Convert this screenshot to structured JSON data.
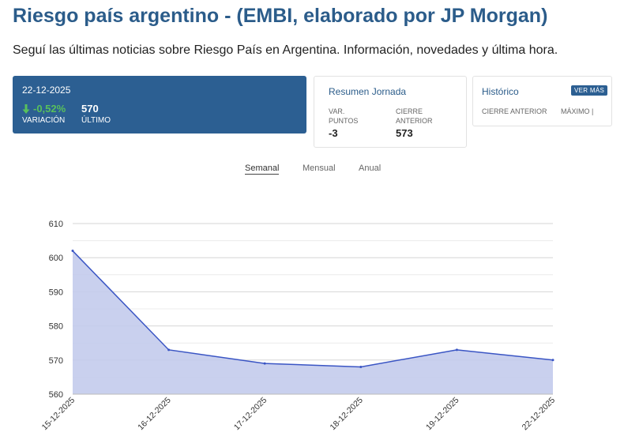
{
  "page": {
    "title": "Riesgo país argentino - (EMBI, elaborado por JP Morgan)",
    "subtitle": "Seguí las últimas noticias sobre Riesgo País en Argentina. Información, novedades y última hora."
  },
  "summary_card": {
    "date": "22-12-2025",
    "variation_value": "-0,52%",
    "variation_label": "VARIACIÓN",
    "last_value": "570",
    "last_label": "ÚLTIMO",
    "variation_icon": "arrow-down-icon"
  },
  "resumen": {
    "heading": "Resumen Jornada",
    "var_label": "VAR. PUNTOS",
    "var_value": "-3",
    "prev_label": "CIERRE ANTERIOR",
    "prev_value": "573"
  },
  "historico": {
    "heading": "Histórico",
    "button": "VER MÁS",
    "prev_close_label": "CIERRE ANTERIOR",
    "max_label": "MÁXIMO |"
  },
  "tabs": [
    {
      "label": "Semanal",
      "active": true
    },
    {
      "label": "Mensual",
      "active": false
    },
    {
      "label": "Anual",
      "active": false
    }
  ],
  "colors": {
    "brand": "#2b5c8a",
    "card_bg": "#2c5f92",
    "positive_green": "#58c05c",
    "line": "#3a55c4",
    "area": "#c3cbec"
  },
  "chart_data": {
    "type": "area",
    "title": "",
    "xlabel": "",
    "ylabel": "",
    "x": [
      "15-12-2025",
      "16-12-2025",
      "17-12-2025",
      "18-12-2025",
      "19-12-2025",
      "22-12-2025"
    ],
    "series": [
      {
        "values": [
          602,
          573,
          569,
          568,
          573,
          570
        ]
      }
    ],
    "ylim": [
      560,
      610
    ],
    "yticks": [
      560,
      570,
      580,
      590,
      600,
      610
    ],
    "grid": true,
    "legend": "none"
  }
}
